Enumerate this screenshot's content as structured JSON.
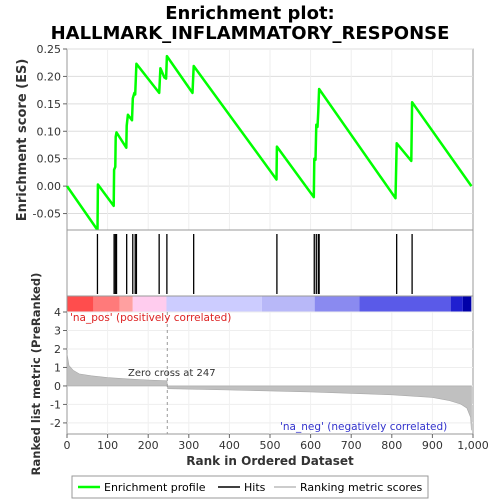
{
  "chart_data": {
    "type": "line",
    "title_line1": "Enrichment plot:",
    "title_line2": "HALLMARK_INFLAMMATORY_RESPONSE",
    "es_panel": {
      "ylabel": "Enrichment score (ES)",
      "ylim": [
        -0.08,
        0.25
      ],
      "yticks": [
        -0.05,
        0.0,
        0.05,
        0.1,
        0.15,
        0.2,
        0.25
      ],
      "ytick_labels": [
        "-0.05",
        "0.00",
        "0.05",
        "0.10",
        "0.15",
        "0.20",
        "0.25"
      ],
      "xlim": [
        0,
        1000
      ],
      "series_name": "Enrichment profile",
      "color": "#00ff00",
      "x": [
        0,
        75,
        76,
        115,
        116,
        119,
        120,
        122,
        146,
        147,
        150,
        160,
        162,
        166,
        168,
        171,
        227,
        230,
        240,
        244,
        246,
        309,
        312,
        516,
        517,
        608,
        609,
        612,
        614,
        617,
        619,
        621,
        809,
        812,
        848,
        850,
        996
      ],
      "y": [
        0.0,
        -0.08,
        0.003,
        -0.036,
        0.03,
        0.035,
        0.09,
        0.098,
        0.07,
        0.11,
        0.13,
        0.12,
        0.16,
        0.17,
        0.167,
        0.223,
        0.17,
        0.215,
        0.198,
        0.196,
        0.237,
        0.17,
        0.219,
        0.012,
        0.072,
        -0.02,
        0.05,
        0.048,
        0.112,
        0.108,
        0.137,
        0.177,
        -0.022,
        0.078,
        0.046,
        0.153,
        0.0
      ]
    },
    "hits": {
      "series_name": "Hits",
      "positions": [
        75,
        116,
        119,
        122,
        147,
        162,
        168,
        171,
        227,
        246,
        312,
        517,
        609,
        614,
        619,
        621,
        812,
        850
      ]
    },
    "metric_panel": {
      "ylabel": "Ranked list metric (PreRanked)",
      "ylim": [
        -2.6,
        4.0
      ],
      "yticks": [
        -2,
        -1,
        0,
        1,
        2,
        3,
        4
      ],
      "ytick_labels": [
        "-2",
        "-1",
        "0",
        "1",
        "2",
        "3",
        "4"
      ],
      "series_name": "Ranking metric scores",
      "profile_x": [
        0,
        5,
        15,
        30,
        60,
        100,
        150,
        200,
        246,
        248,
        400,
        600,
        800,
        900,
        940,
        970,
        985,
        994,
        996
      ],
      "profile_y": [
        1.75,
        1.1,
        0.85,
        0.65,
        0.55,
        0.45,
        0.38,
        0.32,
        0.28,
        -0.15,
        -0.22,
        -0.32,
        -0.48,
        -0.62,
        -0.78,
        -0.98,
        -1.2,
        -1.7,
        -2.4
      ],
      "zero_cross_rank": 247,
      "zero_cross_text": "Zero cross at 247",
      "pos_text": "'na_pos' (positively correlated)",
      "neg_text": "'na_neg' (negatively correlated)"
    },
    "x_axis": {
      "xlabel": "Rank in Ordered Dataset",
      "xticks": [
        0,
        100,
        200,
        300,
        400,
        500,
        600,
        700,
        800,
        900,
        1000
      ],
      "xtick_labels": [
        "0",
        "100",
        "200",
        "300",
        "400",
        "500",
        "600",
        "700",
        "800",
        "900",
        "1,000"
      ]
    },
    "heatmap_bar": {
      "segments": [
        {
          "from": 0,
          "to": 65,
          "color": "#ff4d4d"
        },
        {
          "from": 65,
          "to": 130,
          "color": "#ff7a7a"
        },
        {
          "from": 130,
          "to": 162,
          "color": "#ffa0a0"
        },
        {
          "from": 162,
          "to": 245,
          "color": "#ffccee"
        },
        {
          "from": 245,
          "to": 480,
          "color": "#ccccff"
        },
        {
          "from": 480,
          "to": 610,
          "color": "#b8b8f8"
        },
        {
          "from": 610,
          "to": 720,
          "color": "#8a8af0"
        },
        {
          "from": 720,
          "to": 945,
          "color": "#5a5ae8"
        },
        {
          "from": 945,
          "to": 975,
          "color": "#2020d0"
        },
        {
          "from": 975,
          "to": 996,
          "color": "#0000a8"
        }
      ]
    },
    "legend": [
      {
        "label": "Enrichment profile",
        "color": "#00ff00"
      },
      {
        "label": "Hits",
        "color": "#000000"
      },
      {
        "label": "Ranking metric scores",
        "color": "#bbbbbb"
      }
    ]
  }
}
